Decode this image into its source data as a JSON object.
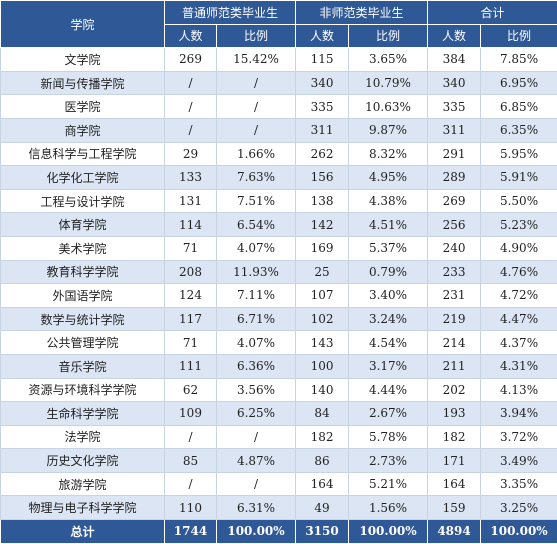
{
  "header": {
    "college": "学院",
    "groups": [
      "普通师范类毕业生",
      "非师范类毕业生",
      "合计"
    ],
    "sub": [
      "人数",
      "比例"
    ]
  },
  "rows": [
    {
      "college": "文学院",
      "n1": "269",
      "p1": "15.42%",
      "n2": "115",
      "p2": "3.65%",
      "n3": "384",
      "p3": "7.85%"
    },
    {
      "college": "新闻与传播学院",
      "n1": "/",
      "p1": "/",
      "n2": "340",
      "p2": "10.79%",
      "n3": "340",
      "p3": "6.95%"
    },
    {
      "college": "医学院",
      "n1": "/",
      "p1": "/",
      "n2": "335",
      "p2": "10.63%",
      "n3": "335",
      "p3": "6.85%"
    },
    {
      "college": "商学院",
      "n1": "/",
      "p1": "/",
      "n2": "311",
      "p2": "9.87%",
      "n3": "311",
      "p3": "6.35%"
    },
    {
      "college": "信息科学与工程学院",
      "n1": "29",
      "p1": "1.66%",
      "n2": "262",
      "p2": "8.32%",
      "n3": "291",
      "p3": "5.95%"
    },
    {
      "college": "化学化工学院",
      "n1": "133",
      "p1": "7.63%",
      "n2": "156",
      "p2": "4.95%",
      "n3": "289",
      "p3": "5.91%"
    },
    {
      "college": "工程与设计学院",
      "n1": "131",
      "p1": "7.51%",
      "n2": "138",
      "p2": "4.38%",
      "n3": "269",
      "p3": "5.50%"
    },
    {
      "college": "体育学院",
      "n1": "114",
      "p1": "6.54%",
      "n2": "142",
      "p2": "4.51%",
      "n3": "256",
      "p3": "5.23%"
    },
    {
      "college": "美术学院",
      "n1": "71",
      "p1": "4.07%",
      "n2": "169",
      "p2": "5.37%",
      "n3": "240",
      "p3": "4.90%"
    },
    {
      "college": "教育科学学院",
      "n1": "208",
      "p1": "11.93%",
      "n2": "25",
      "p2": "0.79%",
      "n3": "233",
      "p3": "4.76%"
    },
    {
      "college": "外国语学院",
      "n1": "124",
      "p1": "7.11%",
      "n2": "107",
      "p2": "3.40%",
      "n3": "231",
      "p3": "4.72%"
    },
    {
      "college": "数学与统计学院",
      "n1": "117",
      "p1": "6.71%",
      "n2": "102",
      "p2": "3.24%",
      "n3": "219",
      "p3": "4.47%"
    },
    {
      "college": "公共管理学院",
      "n1": "71",
      "p1": "4.07%",
      "n2": "143",
      "p2": "4.54%",
      "n3": "214",
      "p3": "4.37%"
    },
    {
      "college": "音乐学院",
      "n1": "111",
      "p1": "6.36%",
      "n2": "100",
      "p2": "3.17%",
      "n3": "211",
      "p3": "4.31%"
    },
    {
      "college": "资源与环境科学学院",
      "n1": "62",
      "p1": "3.56%",
      "n2": "140",
      "p2": "4.44%",
      "n3": "202",
      "p3": "4.13%"
    },
    {
      "college": "生命科学学院",
      "n1": "109",
      "p1": "6.25%",
      "n2": "84",
      "p2": "2.67%",
      "n3": "193",
      "p3": "3.94%"
    },
    {
      "college": "法学院",
      "n1": "/",
      "p1": "/",
      "n2": "182",
      "p2": "5.78%",
      "n3": "182",
      "p3": "3.72%"
    },
    {
      "college": "历史文化学院",
      "n1": "85",
      "p1": "4.87%",
      "n2": "86",
      "p2": "2.73%",
      "n3": "171",
      "p3": "3.49%"
    },
    {
      "college": "旅游学院",
      "n1": "/",
      "p1": "/",
      "n2": "164",
      "p2": "5.21%",
      "n3": "164",
      "p3": "3.35%"
    },
    {
      "college": "物理与电子科学学院",
      "n1": "110",
      "p1": "6.31%",
      "n2": "49",
      "p2": "1.56%",
      "n3": "159",
      "p3": "3.25%"
    }
  ],
  "total": {
    "college": "总计",
    "n1": "1744",
    "p1": "100.00%",
    "n2": "3150",
    "p2": "100.00%",
    "n3": "4894",
    "p3": "100.00%"
  },
  "colors": {
    "header_bg": "#2f5897",
    "stripe": "#dbe5f3",
    "grid": "#c9d4e3"
  }
}
